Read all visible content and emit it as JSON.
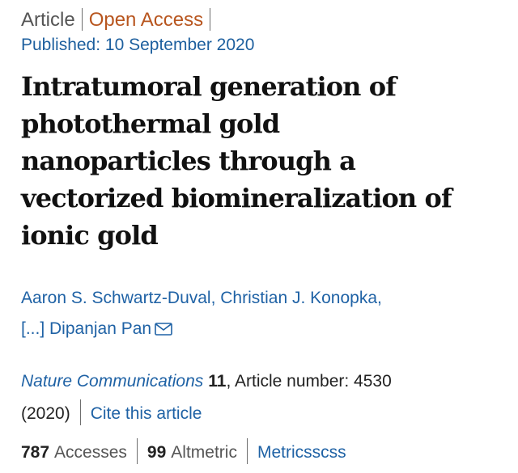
{
  "article_meta": {
    "type": "Article",
    "access": "Open Access",
    "published": "Published: 10 September 2020"
  },
  "title_lines": [
    "Intratumoral generation of",
    "photothermal gold",
    "nanoparticles through a",
    "vectorized biomineralization of",
    "ionic gold"
  ],
  "authors": {
    "line1": "Aaron S. Schwartz-Duval, Christian J. Konopka,",
    "line2": "[...] Dipanjan Pan"
  },
  "journal": {
    "name": "Nature Communications",
    "volume": "11",
    "article_number": ", Article number: 4530",
    "year": "(2020)",
    "cite_label": "Cite this article"
  },
  "metrics": {
    "accesses_count": "787",
    "accesses_label": "Accesses",
    "altmetric_count": "99",
    "altmetric_label": "Altmetric",
    "metrics_label": "Metricsscss"
  },
  "icons": {
    "mail": "envelope-icon"
  },
  "colors": {
    "link": "#1f62a5",
    "open_access": "#b8561f",
    "text": "#222222"
  }
}
